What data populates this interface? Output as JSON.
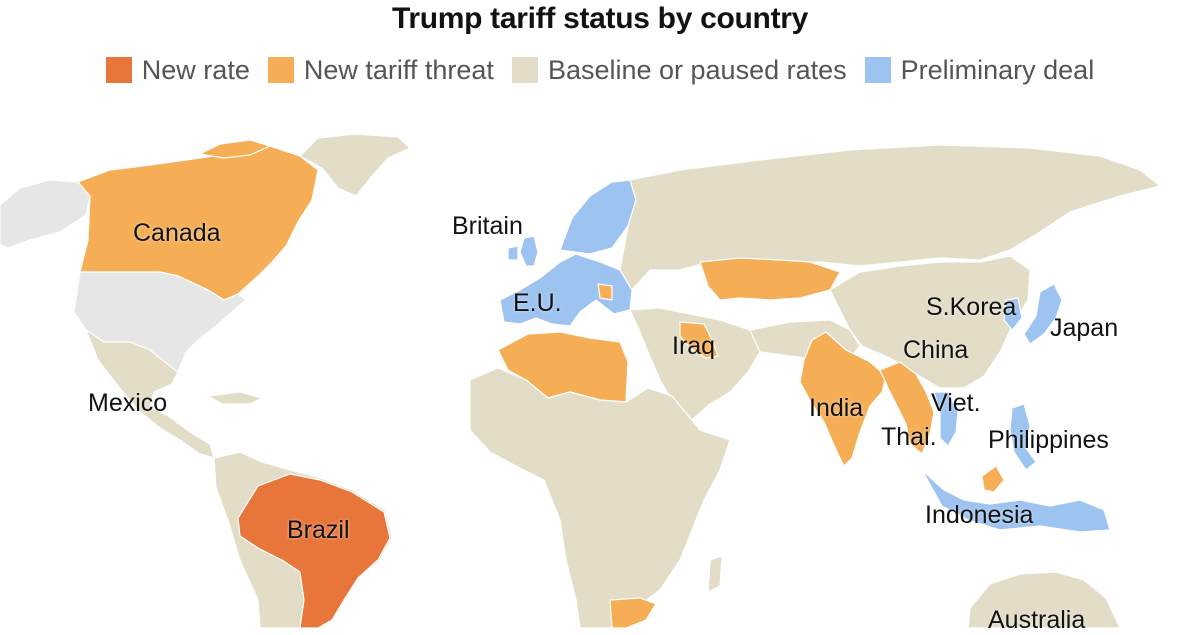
{
  "title": "Trump tariff status by country",
  "legend": [
    {
      "label": "New rate",
      "color": "#E8763A"
    },
    {
      "label": "New tariff threat",
      "color": "#F5AE55"
    },
    {
      "label": "Baseline or paused rates",
      "color": "#E3DCC7"
    },
    {
      "label": "Preliminary deal",
      "color": "#9DC3F0"
    }
  ],
  "colors": {
    "us_gray": "#E6E6E6",
    "new_rate": "#E8763A",
    "threat": "#F5AE55",
    "baseline": "#E3DCC7",
    "deal": "#9DC3F0"
  },
  "labels": {
    "canada": "Canada",
    "britain": "Britain",
    "eu": "E.U.",
    "iraq": "Iraq",
    "skorea": "S.Korea",
    "japan": "Japan",
    "china": "China",
    "mexico": "Mexico",
    "india": "India",
    "viet": "Viet.",
    "thai": "Thai.",
    "philippines": "Philippines",
    "brazil": "Brazil",
    "indonesia": "Indonesia",
    "australia": "Australia"
  }
}
